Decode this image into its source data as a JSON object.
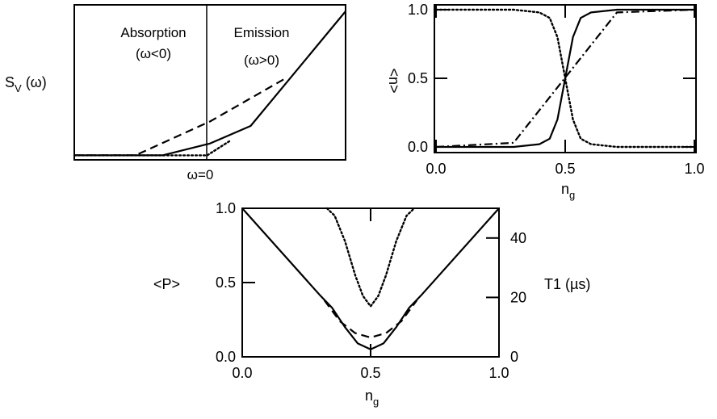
{
  "chart_data": [
    {
      "id": "spectral",
      "type": "line",
      "ylabel": "S",
      "ylabel_sub": "V",
      "ylabel_suffix": " (ω)",
      "x_marker_label": "ω=0",
      "annotations": [
        {
          "text": "Absorption",
          "subtext": "(ω<0)"
        },
        {
          "text": "Emission",
          "subtext": "(ω>0)"
        }
      ],
      "xlim": [
        -1,
        1
      ],
      "ylim": [
        0,
        1
      ],
      "series": [
        {
          "style": "solid",
          "x": [
            -1.0,
            -0.35,
            0.0,
            0.3,
            1.0
          ],
          "y": [
            0.02,
            0.02,
            0.1,
            0.22,
            1.0
          ]
        },
        {
          "style": "dashed",
          "x": [
            -1.0,
            -0.55,
            0.0,
            0.55
          ],
          "y": [
            0.02,
            0.02,
            0.25,
            0.54
          ]
        },
        {
          "style": "dotted",
          "x": [
            -1.0,
            -0.02,
            0.15
          ],
          "y": [
            0.02,
            0.02,
            0.12
          ]
        }
      ]
    },
    {
      "id": "occupation",
      "type": "line",
      "ylabel": "<n>",
      "xlabel": "n",
      "xlabel_sub": "g",
      "xlim": [
        0,
        1
      ],
      "ylim": [
        0,
        1
      ],
      "xticks": [
        "0.0",
        "0.5",
        "1.0"
      ],
      "yticks": [
        "0.0",
        "0.5",
        "1.0"
      ],
      "xtick_values": [
        0,
        0.5,
        1
      ],
      "ytick_values": [
        0,
        0.5,
        1
      ],
      "series": [
        {
          "style": "solid",
          "x": [
            0,
            0.3,
            0.4,
            0.44,
            0.47,
            0.49,
            0.5,
            0.51,
            0.53,
            0.56,
            0.6,
            0.7,
            1.0
          ],
          "y": [
            0.0,
            0.0,
            0.02,
            0.06,
            0.2,
            0.4,
            0.5,
            0.6,
            0.8,
            0.94,
            0.98,
            1.0,
            1.0
          ]
        },
        {
          "style": "dotted",
          "x": [
            0,
            0.3,
            0.4,
            0.44,
            0.47,
            0.49,
            0.5,
            0.51,
            0.53,
            0.56,
            0.6,
            0.7,
            1.0
          ],
          "y": [
            1.0,
            1.0,
            0.98,
            0.94,
            0.8,
            0.6,
            0.5,
            0.4,
            0.2,
            0.06,
            0.02,
            0.0,
            0.0
          ]
        },
        {
          "style": "dashdot",
          "x": [
            0,
            0.3,
            0.7,
            1.0
          ],
          "y": [
            0.0,
            0.03,
            0.98,
            1.0
          ]
        }
      ]
    },
    {
      "id": "probability",
      "type": "line",
      "ylabel": "<P>",
      "ylabel_right": "T1 (µs)",
      "xlabel": "n",
      "xlabel_sub": "g",
      "xlim": [
        0,
        1
      ],
      "ylim": [
        0,
        1
      ],
      "ylim_right": [
        0,
        50
      ],
      "xticks": [
        "0.0",
        "0.5",
        "1.0"
      ],
      "yticks": [
        "0.0",
        "0.5",
        "1.0"
      ],
      "xtick_values": [
        0,
        0.5,
        1
      ],
      "ytick_values": [
        0,
        0.5,
        1
      ],
      "yticks_right": [
        "0",
        "20",
        "40"
      ],
      "ytick_right_values": [
        0,
        20,
        40
      ],
      "series": [
        {
          "style": "solid",
          "x": [
            0,
            0.3,
            0.35,
            0.4,
            0.45,
            0.5,
            0.55,
            0.6,
            0.65,
            0.7,
            1.0
          ],
          "y": [
            1.0,
            0.42,
            0.33,
            0.2,
            0.09,
            0.05,
            0.09,
            0.2,
            0.33,
            0.42,
            1.0
          ]
        },
        {
          "style": "dashed",
          "x": [
            0.32,
            0.38,
            0.44,
            0.5,
            0.56,
            0.62,
            0.68
          ],
          "y": [
            0.38,
            0.24,
            0.16,
            0.13,
            0.16,
            0.24,
            0.38
          ]
        },
        {
          "style": "dotted",
          "x": [
            0.33,
            0.36,
            0.4,
            0.44,
            0.47,
            0.5,
            0.53,
            0.56,
            0.6,
            0.64,
            0.67
          ],
          "y": [
            1.0,
            0.95,
            0.78,
            0.55,
            0.41,
            0.34,
            0.41,
            0.55,
            0.78,
            0.95,
            1.0
          ]
        }
      ]
    }
  ]
}
